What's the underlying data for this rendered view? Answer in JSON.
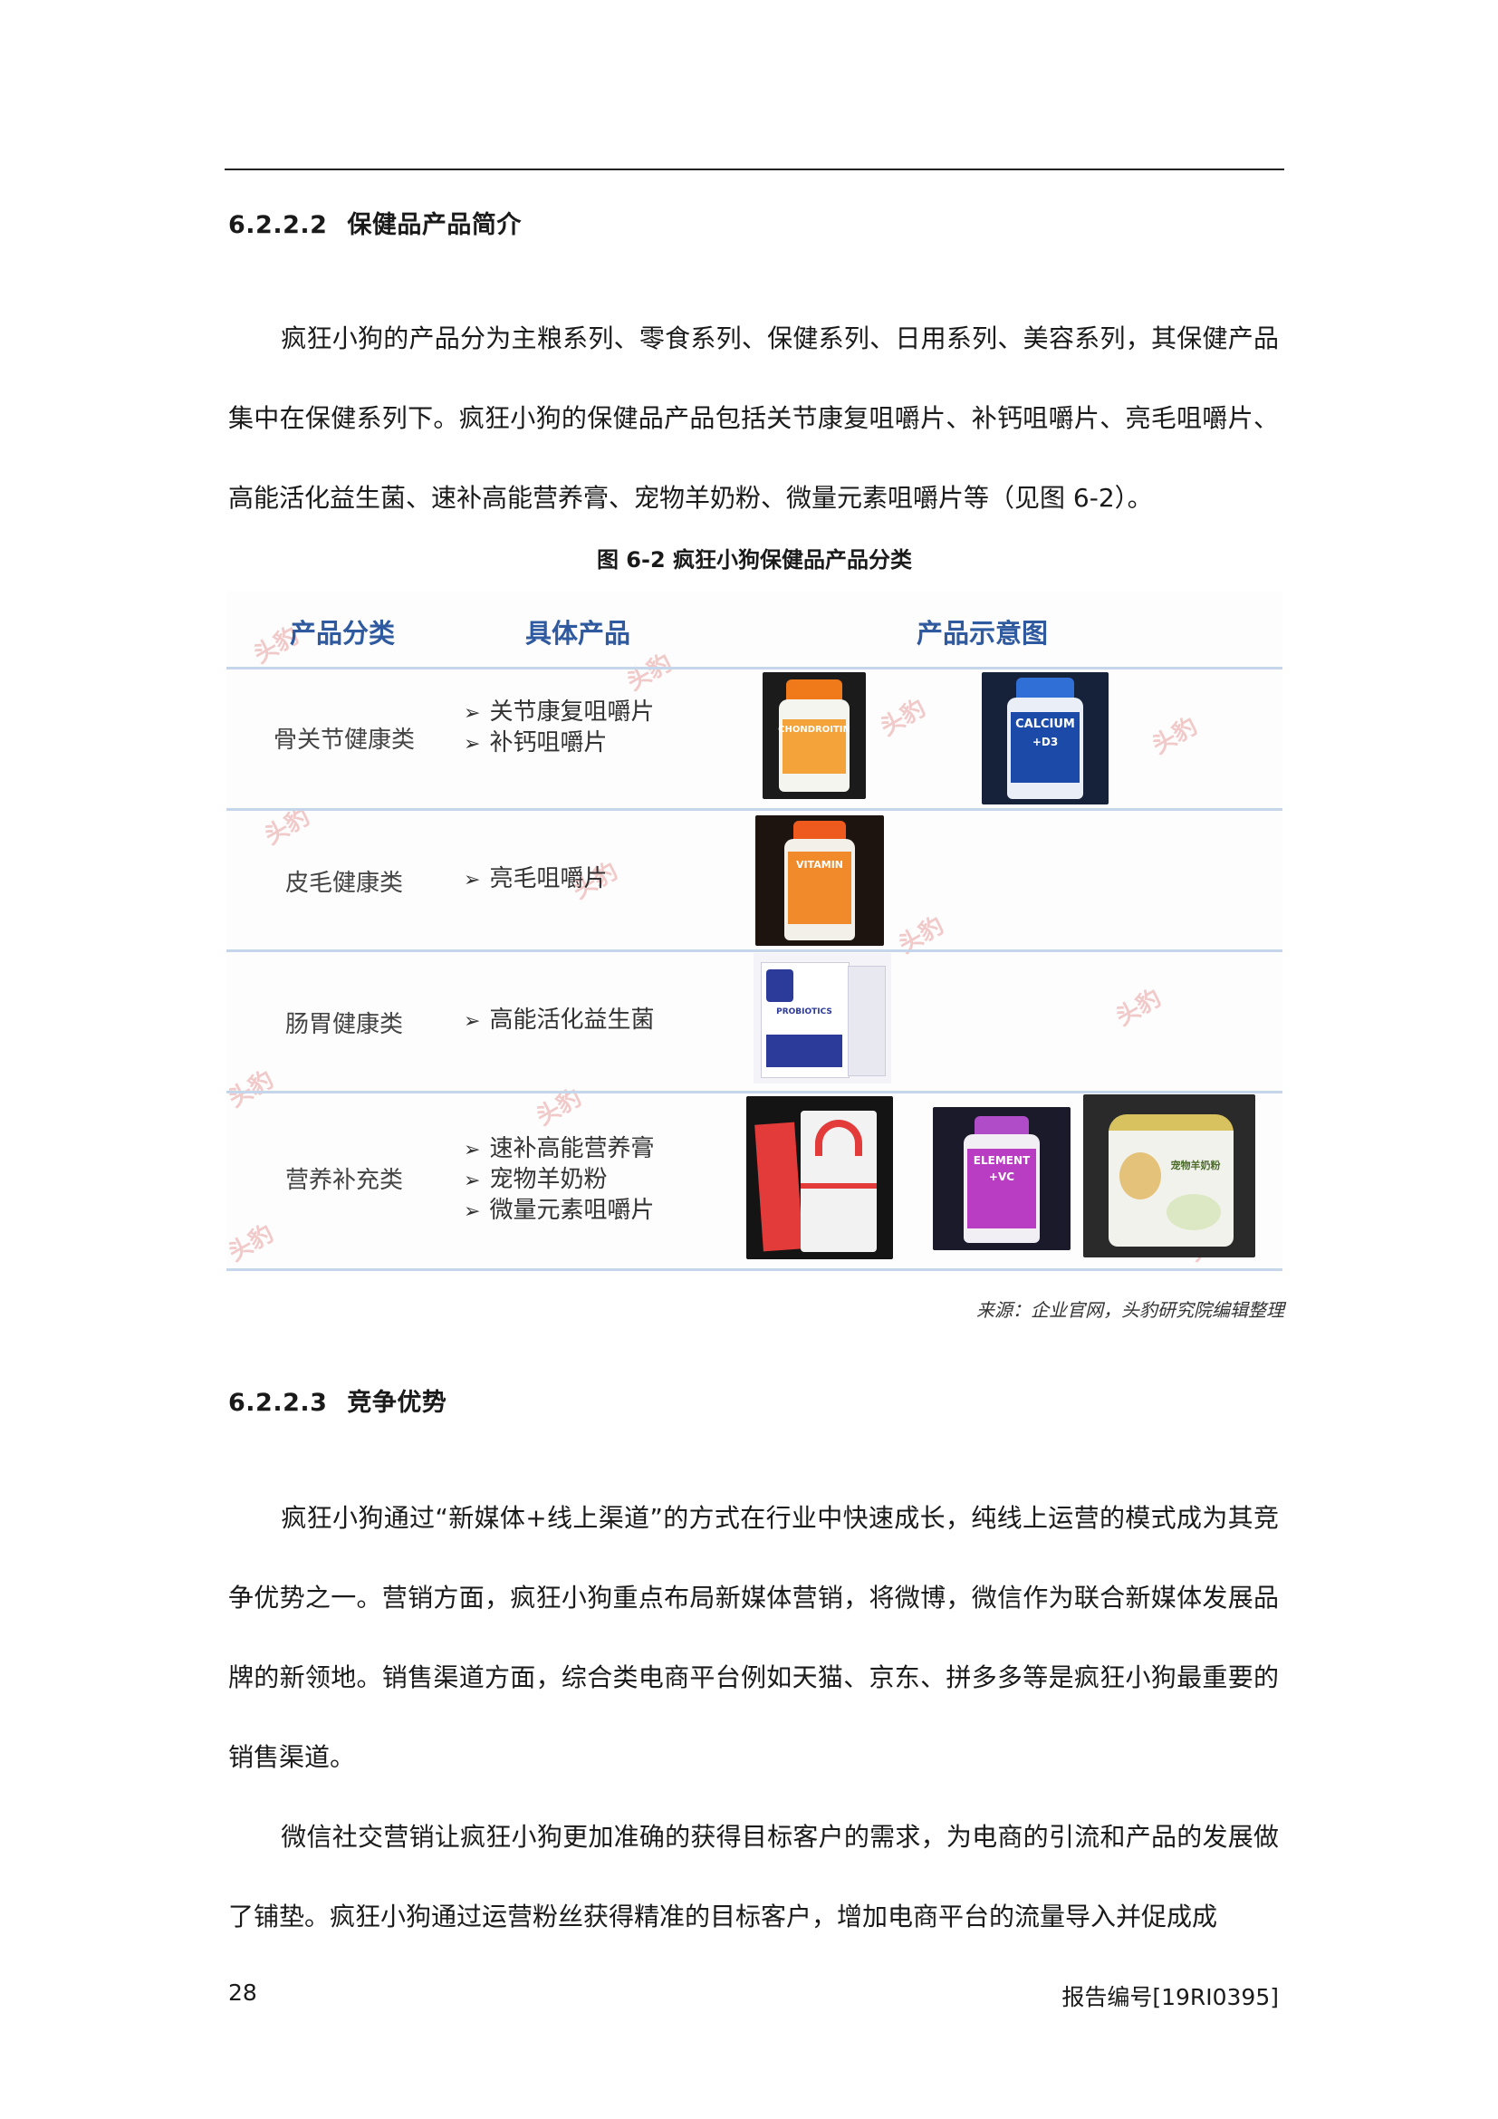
{
  "section_222": {
    "number": "6.2.2.2",
    "title": "保健品产品简介"
  },
  "para1": "疯狂小狗的产品分为主粮系列、零食系列、保健系列、日用系列、美容系列，其保健产品集中在保健系列下。疯狂小狗的保健品产品包括关节康复咀嚼片、补钙咀嚼片、亮毛咀嚼片、高能活化益生菌、速补高能营养膏、宠物羊奶粉、微量元素咀嚼片等（见图 6-2）。",
  "figure": {
    "caption": "图 6-2 疯狂小狗保健品产品分类",
    "headers": {
      "category": "产品分类",
      "product": "具体产品",
      "image": "产品示意图"
    },
    "watermark": "头豹",
    "rows": [
      {
        "category": "骨关节健康类",
        "items": [
          "关节康复咀嚼片",
          "补钙咀嚼片"
        ]
      },
      {
        "category": "皮毛健康类",
        "items": [
          "亮毛咀嚼片"
        ]
      },
      {
        "category": "肠胃健康类",
        "items": [
          "高能活化益生菌"
        ]
      },
      {
        "category": "营养补充类",
        "items": [
          "速补高能营养膏",
          "宠物羊奶粉",
          "微量元素咀嚼片"
        ]
      }
    ],
    "product_labels": {
      "chondroitin": "CHONDROITIN",
      "calcium": "CALCIUM",
      "calcium_sub": "+D3",
      "vitamin": "VITAMIN",
      "probiotics": "PROBIOTICS",
      "element": "ELEMENT",
      "element_sub": "+VC",
      "milk": "宠物羊奶粉"
    },
    "source": "来源：企业官网，头豹研究院编辑整理"
  },
  "section_223": {
    "number": "6.2.2.3",
    "title": "竞争优势"
  },
  "para2": "疯狂小狗通过“新媒体+线上渠道”的方式在行业中快速成长，纯线上运营的模式成为其竞争优势之一。营销方面，疯狂小狗重点布局新媒体营销，将微博，微信作为联合新媒体发展品牌的新领地。销售渠道方面，综合类电商平台例如天猫、京东、拼多多等是疯狂小狗最重要的销售渠道。",
  "para3": "微信社交营销让疯狂小狗更加准确的获得目标客户的需求，为电商的引流和产品的发展做了铺垫。疯狂小狗通过运营粉丝获得精准的目标客户，增加电商平台的流量导入并促成成",
  "footer": {
    "page_number": "28",
    "report_id": "报告编号[19RI0395]"
  }
}
